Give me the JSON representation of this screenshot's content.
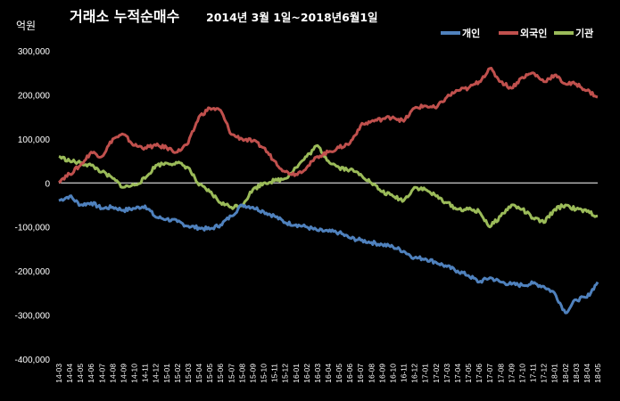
{
  "chart_data": {
    "type": "line",
    "title": "거래소 누적순매수",
    "subtitle": "2014년 3월 1일~2018년6월1일",
    "ylabel": "억원",
    "ylim": [
      -400000,
      300000
    ],
    "yticks": [
      "300,000",
      "200,000",
      "100,000",
      "0",
      "-100,000",
      "-200,000",
      "-300,000",
      "-400,000"
    ],
    "ytick_values": [
      300000,
      200000,
      100000,
      0,
      -100000,
      -200000,
      -300000,
      -400000
    ],
    "grid": false,
    "legend_position": "top-right",
    "x": [
      "14-03",
      "14-04",
      "14-05",
      "14-06",
      "14-07",
      "14-08",
      "14-09",
      "14-10",
      "14-11",
      "14-12",
      "15-01",
      "15-02",
      "15-03",
      "15-04",
      "15-05",
      "15-06",
      "15-07",
      "15-08",
      "15-09",
      "15-10",
      "15-11",
      "15-12",
      "16-01",
      "16-02",
      "16-03",
      "16-04",
      "16-05",
      "16-06",
      "16-07",
      "16-08",
      "16-09",
      "16-10",
      "16-11",
      "16-12",
      "17-01",
      "17-02",
      "17-03",
      "17-04",
      "17-05",
      "17-06",
      "17-07",
      "17-08",
      "17-09",
      "17-10",
      "17-11",
      "17-12",
      "18-01",
      "18-02",
      "18-03",
      "18-04",
      "18-05"
    ],
    "series": [
      {
        "name": "개인",
        "color": "#4f81bd",
        "values": [
          -40000,
          -30000,
          -50000,
          -45000,
          -58000,
          -55000,
          -62000,
          -58000,
          -52000,
          -78000,
          -82000,
          -88000,
          -98000,
          -102000,
          -105000,
          -95000,
          -75000,
          -50000,
          -55000,
          -65000,
          -75000,
          -90000,
          -95000,
          -100000,
          -108000,
          -110000,
          -113000,
          -125000,
          -130000,
          -135000,
          -140000,
          -145000,
          -155000,
          -170000,
          -172000,
          -180000,
          -190000,
          -200000,
          -210000,
          -225000,
          -215000,
          -225000,
          -230000,
          -232000,
          -228000,
          -235000,
          -250000,
          -295000,
          -265000,
          -260000,
          -225000
        ]
      },
      {
        "name": "외국인",
        "color": "#c0504d",
        "values": [
          5000,
          20000,
          40000,
          70000,
          60000,
          100000,
          110000,
          85000,
          80000,
          85000,
          80000,
          70000,
          90000,
          150000,
          170000,
          165000,
          110000,
          100000,
          95000,
          80000,
          50000,
          25000,
          20000,
          35000,
          60000,
          70000,
          80000,
          90000,
          130000,
          140000,
          145000,
          150000,
          140000,
          170000,
          175000,
          170000,
          195000,
          210000,
          215000,
          230000,
          260000,
          230000,
          215000,
          240000,
          250000,
          230000,
          245000,
          225000,
          225000,
          210000,
          195000
        ]
      },
      {
        "name": "기관",
        "color": "#9bbb59",
        "values": [
          60000,
          50000,
          45000,
          40000,
          25000,
          10000,
          -10000,
          -5000,
          10000,
          40000,
          45000,
          45000,
          35000,
          -5000,
          -20000,
          -45000,
          -55000,
          -50000,
          -15000,
          0,
          5000,
          10000,
          35000,
          60000,
          85000,
          50000,
          35000,
          30000,
          20000,
          0,
          -20000,
          -30000,
          -40000,
          -10000,
          -15000,
          -30000,
          -45000,
          -60000,
          -60000,
          -65000,
          -100000,
          -75000,
          -50000,
          -60000,
          -80000,
          -90000,
          -60000,
          -50000,
          -60000,
          -65000,
          -75000
        ]
      }
    ]
  }
}
